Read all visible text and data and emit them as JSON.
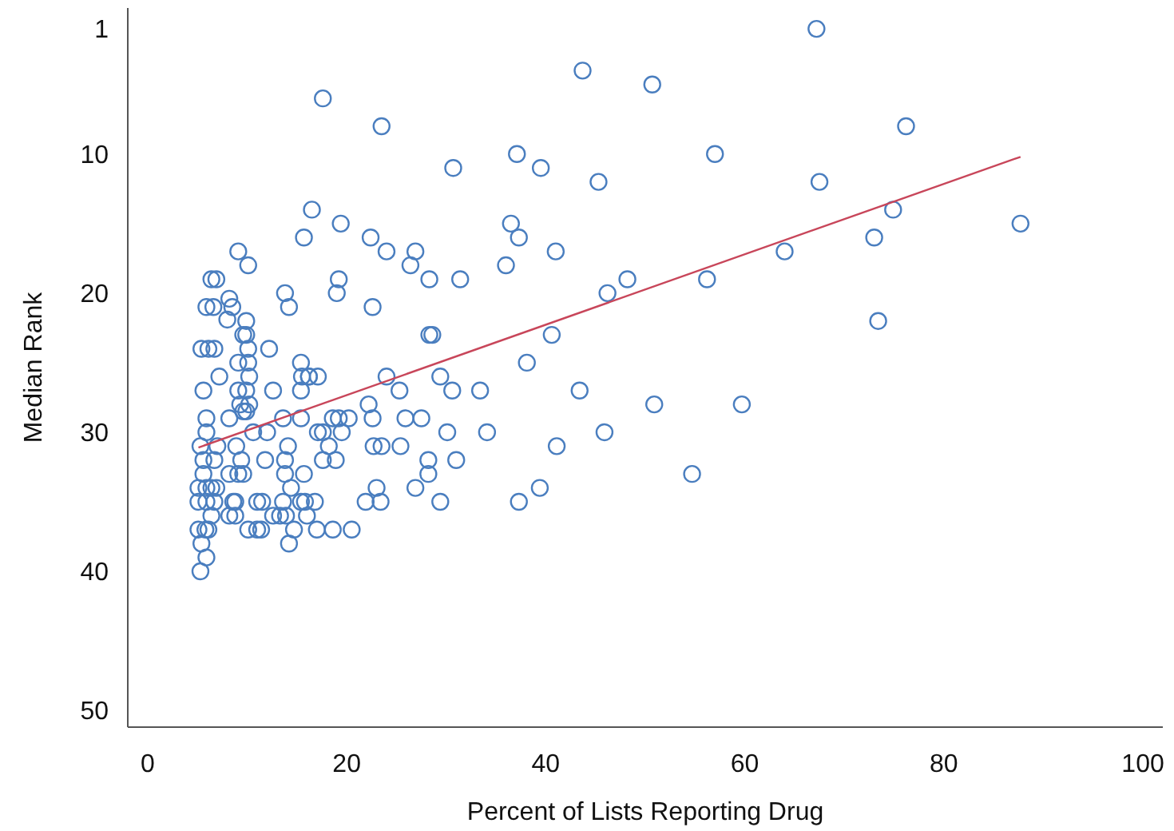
{
  "chart_data": {
    "type": "scatter",
    "xlabel": "Percent of Lists Reporting Drug",
    "ylabel": "Median Rank",
    "xlim": [
      -2,
      102
    ],
    "ylim": [
      51.2,
      -0.5
    ],
    "xticks": [
      0,
      20,
      40,
      60,
      80,
      100
    ],
    "yticks": [
      1,
      10,
      20,
      30,
      40,
      50
    ],
    "grid": false,
    "series": [
      {
        "marker": "circle",
        "color": "#4a7ebf",
        "x": [
          67.2,
          76.2,
          67.5,
          74.9,
          73,
          87.7,
          64,
          73.4,
          59.7,
          43.7,
          50.7,
          57,
          30.7,
          37.1,
          39.5,
          45.3,
          36.5,
          37.3,
          41,
          36,
          31.4,
          48.2,
          56.2,
          46.2,
          28.6,
          40.6,
          38.1,
          29.4,
          30.6,
          33.4,
          43.4,
          50.9,
          30.1,
          34.1,
          45.9,
          31,
          41.1,
          54.7,
          39.4,
          29.4,
          37.3,
          16.5,
          19.4,
          15.7,
          22.4,
          24,
          26.9,
          26.4,
          28.3,
          19.2,
          19,
          13.8,
          14.2,
          22.6,
          28.3,
          12.2,
          15.4,
          16.2,
          15.5,
          16.2,
          17.1,
          24,
          12.6,
          15.4,
          25.3,
          22.2,
          13.6,
          15.4,
          18.6,
          19.2,
          20.2,
          22.6,
          25.9,
          27.5,
          12,
          17.1,
          17.6,
          19.5,
          14.1,
          18.2,
          22.7,
          23.5,
          25.4,
          11.8,
          13.8,
          17.6,
          18.9,
          28.2,
          13.8,
          15.7,
          28.2,
          23,
          26.9,
          14.4,
          11,
          11.5,
          13.6,
          15.4,
          15.8,
          16.8,
          21.9,
          23.4,
          12.6,
          13.3,
          13.9,
          16,
          11,
          14.7,
          17,
          18.6,
          20.5,
          14.2,
          9.1,
          10.1,
          6.4,
          6.9,
          8.2,
          5.9,
          6.6,
          8.5,
          8,
          9.9,
          9.6,
          9.9,
          5.4,
          6.1,
          6.7,
          10.1,
          9.1,
          10.1,
          7.2,
          10.2,
          5.6,
          9.1,
          9.9,
          9.3,
          10.2,
          9.9,
          9.6,
          5.9,
          8.2,
          5.9,
          10.6,
          5.3,
          7,
          8.9,
          5.6,
          6.7,
          9.4,
          5.6,
          8.2,
          9.1,
          9.6,
          5.1,
          5.9,
          6.4,
          6.9,
          5.1,
          5.9,
          6.7,
          8.6,
          8.8,
          6.4,
          8.2,
          8.8,
          10.1,
          11.4,
          5.1,
          5.8,
          6.1,
          5.4,
          5.9,
          5.3,
          17.6,
          23.5
        ],
        "values": [
          1,
          8,
          12,
          14,
          16,
          15,
          17,
          22,
          28,
          4,
          5,
          10,
          11,
          10,
          11,
          12,
          15,
          16,
          17,
          18,
          19,
          19,
          19,
          20,
          23,
          23,
          25,
          26,
          27,
          27,
          27,
          28,
          30,
          30,
          30,
          32,
          31,
          33,
          34,
          35,
          35,
          14,
          15,
          16,
          16,
          17,
          17,
          18,
          19,
          19,
          20,
          20,
          21,
          21,
          23,
          24,
          25,
          26,
          26,
          26,
          26,
          26,
          27,
          27,
          27,
          28,
          29,
          29,
          29,
          29,
          29,
          29,
          29,
          29,
          30,
          30,
          30,
          30,
          31,
          31,
          31,
          31,
          31,
          32,
          32,
          32,
          32,
          32,
          33,
          33,
          33,
          34,
          34,
          34,
          35,
          35,
          35,
          35,
          35,
          35,
          35,
          35,
          36,
          36,
          36,
          36,
          37,
          37,
          37,
          37,
          37,
          38,
          17,
          18,
          19,
          19,
          20.4,
          21,
          21,
          21,
          21.9,
          22,
          23,
          23,
          24,
          24,
          24,
          24,
          25,
          25,
          26,
          26,
          27,
          27,
          27,
          28,
          28,
          28.5,
          28.5,
          29,
          29,
          30,
          30,
          31,
          31,
          31,
          32,
          32,
          32,
          33,
          33,
          33,
          33,
          34,
          34,
          34,
          34,
          35,
          35,
          35,
          35,
          35,
          36,
          36,
          36,
          37,
          37,
          37,
          37,
          37,
          38,
          39,
          40,
          6,
          8
        ]
      },
      {
        "type": "line",
        "color": "#c8465a",
        "x": [
          5.1,
          87.7
        ],
        "values": [
          31.1,
          10.2
        ]
      }
    ]
  }
}
